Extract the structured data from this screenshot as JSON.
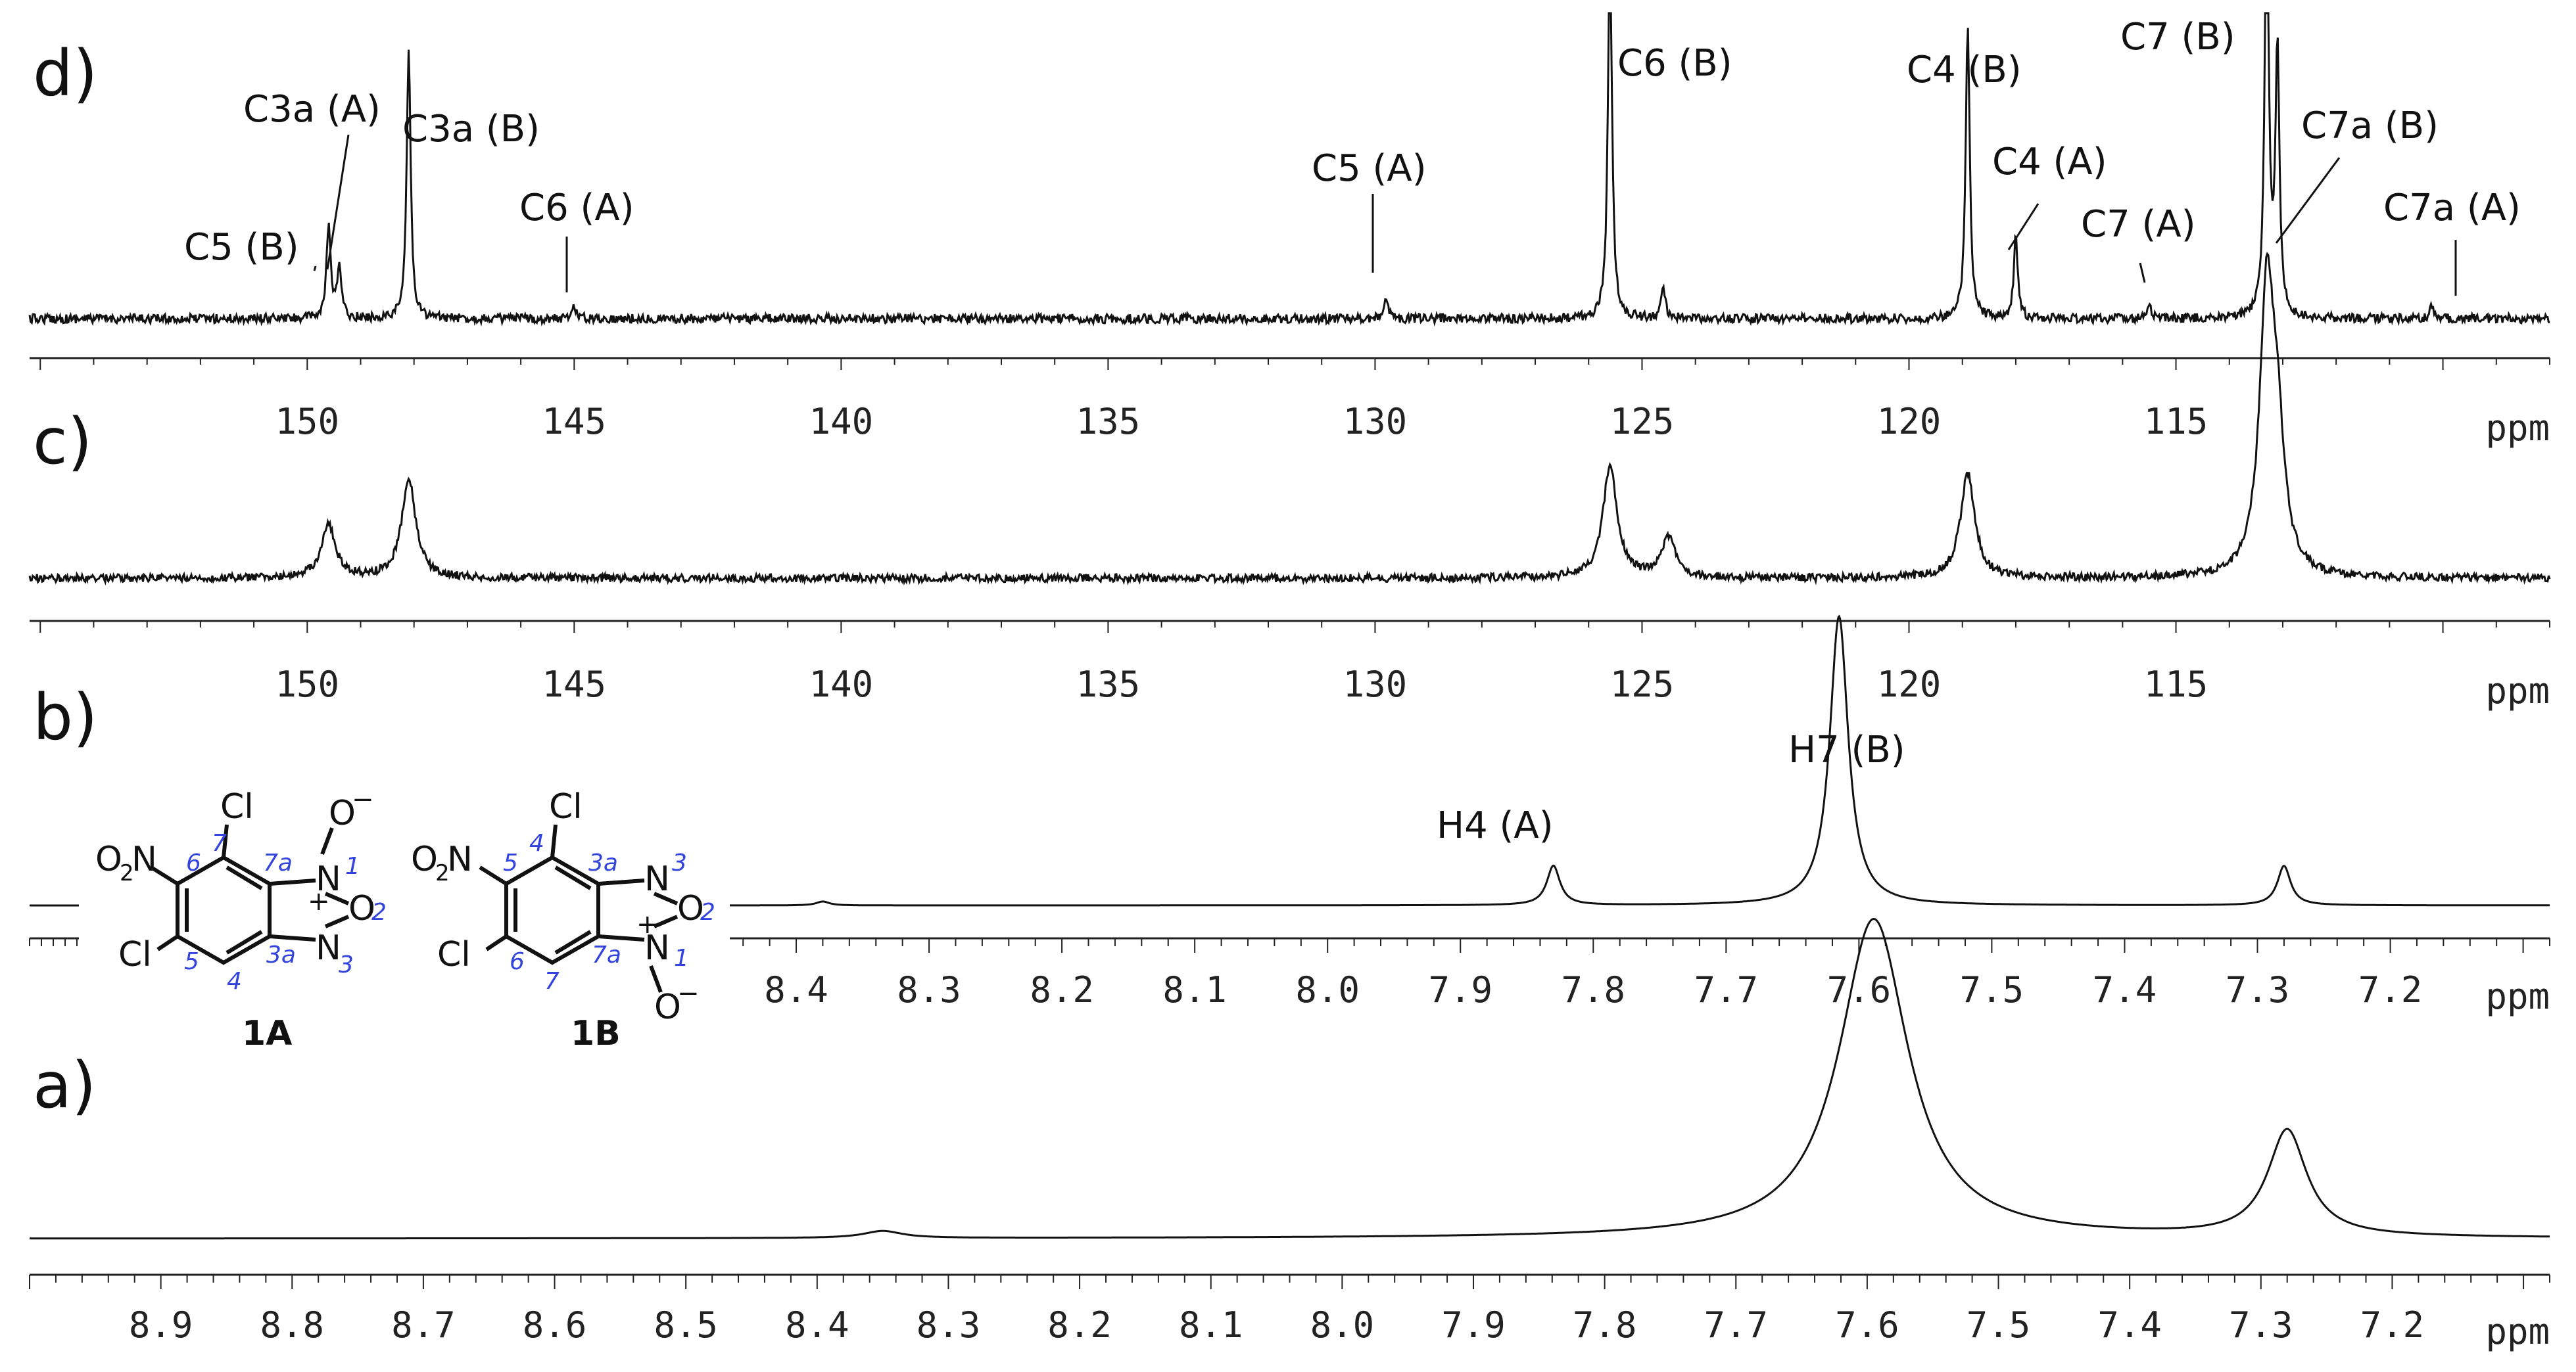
{
  "colors": {
    "trace": "#111111",
    "axis": "#222222",
    "atom_numbering": "#3344dd"
  },
  "chart_data": [
    {
      "panel": "d)",
      "type": "line",
      "description_nucleus": "13C",
      "x_unit": "ppm",
      "xlim": [
        155.2,
        108.0
      ],
      "x_ticks": [
        150,
        145,
        140,
        135,
        130,
        125,
        120,
        115
      ],
      "peaks": [
        {
          "x": 149.6,
          "height": 0.35,
          "label": "C5 (B)"
        },
        {
          "x": 149.4,
          "height": 0.2,
          "label": "C3a (A)"
        },
        {
          "x": 148.1,
          "height": 1.0,
          "label": "C3a (B)"
        },
        {
          "x": 145.0,
          "height": 0.05,
          "label": "C6 (A)"
        },
        {
          "x": 129.8,
          "height": 0.08,
          "label": "C5 (A)"
        },
        {
          "x": 125.6,
          "height": 1.4,
          "label": "C6 (B)"
        },
        {
          "x": 124.6,
          "height": 0.12,
          "label": ""
        },
        {
          "x": 118.9,
          "height": 1.1,
          "label": "C4 (B)"
        },
        {
          "x": 118.0,
          "height": 0.3,
          "label": "C4 (A)"
        },
        {
          "x": 115.5,
          "height": 0.05,
          "label": "C7 (A)"
        },
        {
          "x": 113.3,
          "height": 1.6,
          "label": "C7 (B)"
        },
        {
          "x": 113.1,
          "height": 1.0,
          "label": "C7a (B)"
        },
        {
          "x": 110.2,
          "height": 0.05,
          "label": "C7a (A)"
        }
      ]
    },
    {
      "panel": "c)",
      "type": "line",
      "description_nucleus": "13C",
      "x_unit": "ppm",
      "xlim": [
        155.2,
        108.0
      ],
      "x_ticks": [
        150,
        145,
        140,
        135,
        130,
        125,
        120,
        115
      ],
      "peaks": [
        {
          "x": 149.6,
          "height": 0.4
        },
        {
          "x": 148.1,
          "height": 0.75
        },
        {
          "x": 125.6,
          "height": 0.85
        },
        {
          "x": 124.5,
          "height": 0.3
        },
        {
          "x": 118.9,
          "height": 0.8
        },
        {
          "x": 113.3,
          "height": 2.1
        },
        {
          "x": 113.1,
          "height": 0.9
        }
      ]
    },
    {
      "panel": "b)",
      "type": "line",
      "description_nucleus": "1H",
      "x_unit": "ppm",
      "xlim": [
        8.45,
        7.08
      ],
      "x_ticks": [
        8.4,
        8.3,
        8.2,
        8.1,
        8.0,
        7.9,
        7.8,
        7.7,
        7.6,
        7.5,
        7.4,
        7.3,
        7.2
      ],
      "peaks": [
        {
          "x": 8.38,
          "height": 0.03,
          "label": ""
        },
        {
          "x": 7.83,
          "height": 0.3,
          "label": "H4 (A)"
        },
        {
          "x": 7.615,
          "height": 2.2,
          "label": "H7 (B)"
        },
        {
          "x": 7.28,
          "height": 0.3,
          "label": ""
        }
      ]
    },
    {
      "panel": "a)",
      "type": "line",
      "description_nucleus": "1H",
      "x_unit": "ppm",
      "xlim": [
        9.0,
        7.08
      ],
      "x_ticks": [
        8.9,
        8.8,
        8.7,
        8.6,
        8.5,
        8.4,
        8.3,
        8.2,
        8.1,
        8.0,
        7.9,
        7.8,
        7.7,
        7.6,
        7.5,
        7.4,
        7.3,
        7.2
      ],
      "peaks": [
        {
          "x": 8.35,
          "height": 0.06
        },
        {
          "x": 7.595,
          "height": 2.7
        },
        {
          "x": 7.28,
          "height": 0.9
        }
      ]
    }
  ],
  "panel_labels": {
    "d": "d)",
    "c": "c)",
    "b": "b)",
    "a": "a)"
  },
  "structures": {
    "A": {
      "name": "1A",
      "o2n": "O",
      "o2n_sub": "2",
      "o2n_n": "N",
      "cl_top": "Cl",
      "cl_bottom": "Cl",
      "n1": "N",
      "n3": "N",
      "o_ring": "O",
      "o_minus": "O",
      "plus": "+",
      "minus": "−",
      "num_6": "6",
      "num_7": "7",
      "num_7a": "7a",
      "num_1": "1",
      "num_2": "2",
      "num_5": "5",
      "num_4": "4",
      "num_3a": "3a",
      "num_3": "3"
    },
    "B": {
      "name": "1B",
      "o2n": "O",
      "o2n_sub": "2",
      "o2n_n": "N",
      "cl_top": "Cl",
      "cl_bottom": "Cl",
      "n3": "N",
      "n1": "N",
      "o_ring": "O",
      "o_minus": "O",
      "plus": "+",
      "minus": "−",
      "num_5": "5",
      "num_4": "4",
      "num_3a": "3a",
      "num_3": "3",
      "num_2": "2",
      "num_6": "6",
      "num_7": "7",
      "num_7a": "7a",
      "num_1": "1"
    }
  }
}
